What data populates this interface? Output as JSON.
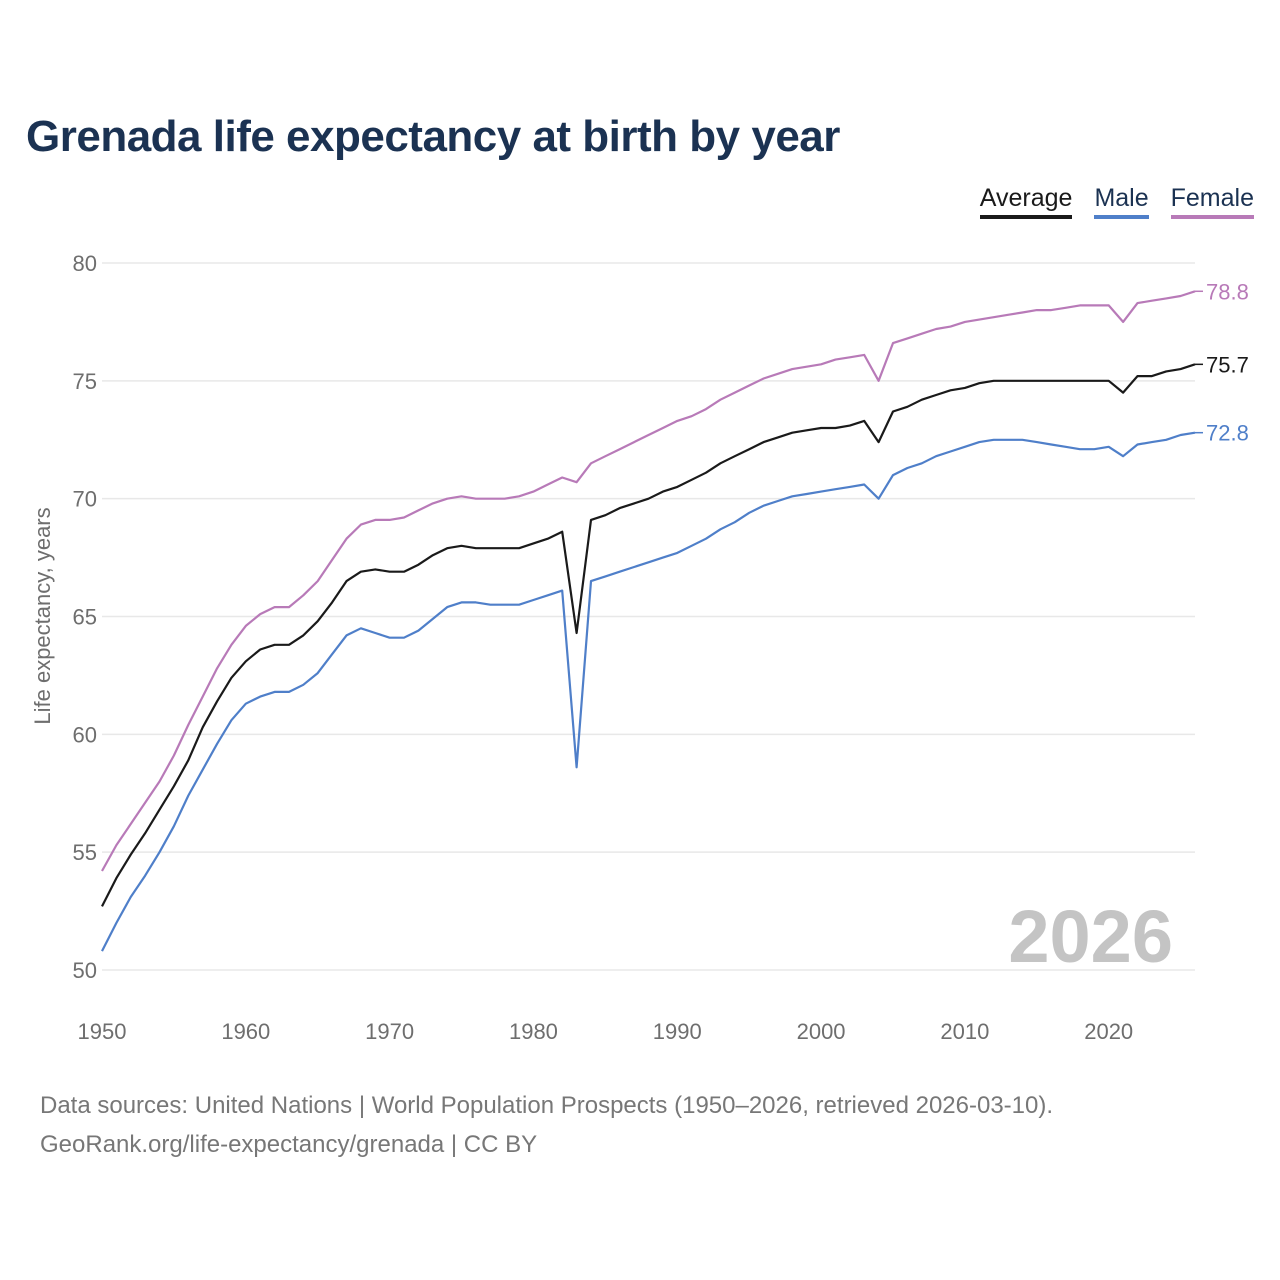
{
  "chart_data": {
    "type": "line",
    "title": "Grenada life expectancy at birth by year",
    "xlabel": "",
    "ylabel": "Life expectancy, years",
    "xlim": [
      1950,
      2026
    ],
    "ylim": [
      50,
      80
    ],
    "xticks": [
      "1950",
      "1960",
      "1970",
      "1980",
      "1990",
      "2000",
      "2010",
      "2020"
    ],
    "yticks": [
      "50",
      "55",
      "60",
      "65",
      "70",
      "75",
      "80"
    ],
    "grid": true,
    "legend_placement": "top-right",
    "watermark_year": "2026",
    "x_start": 1950,
    "series": [
      {
        "name": "Average",
        "color": "#1a1a1a",
        "end_label": "75.7",
        "values": [
          52.7,
          53.9,
          54.9,
          55.8,
          56.8,
          57.8,
          58.9,
          60.3,
          61.4,
          62.4,
          63.1,
          63.6,
          63.8,
          63.8,
          64.2,
          64.8,
          65.6,
          66.5,
          66.9,
          67.0,
          66.9,
          66.9,
          67.2,
          67.6,
          67.9,
          68.0,
          67.9,
          67.9,
          67.9,
          67.9,
          68.1,
          68.3,
          68.6,
          64.3,
          69.1,
          69.3,
          69.6,
          69.8,
          70.0,
          70.3,
          70.5,
          70.8,
          71.1,
          71.5,
          71.8,
          72.1,
          72.4,
          72.6,
          72.8,
          72.9,
          73.0,
          73.0,
          73.1,
          73.3,
          72.4,
          73.7,
          73.9,
          74.2,
          74.4,
          74.6,
          74.7,
          74.9,
          75.0,
          75.0,
          75.0,
          75.0,
          75.0,
          75.0,
          75.0,
          75.0,
          75.0,
          74.5,
          75.2,
          75.2,
          75.4,
          75.5,
          75.7
        ]
      },
      {
        "name": "Male",
        "color": "#4f7fc9",
        "end_label": "72.8",
        "values": [
          50.8,
          52.0,
          53.1,
          54.0,
          55.0,
          56.1,
          57.4,
          58.5,
          59.6,
          60.6,
          61.3,
          61.6,
          61.8,
          61.8,
          62.1,
          62.6,
          63.4,
          64.2,
          64.5,
          64.3,
          64.1,
          64.1,
          64.4,
          64.9,
          65.4,
          65.6,
          65.6,
          65.5,
          65.5,
          65.5,
          65.7,
          65.9,
          66.1,
          58.6,
          66.5,
          66.7,
          66.9,
          67.1,
          67.3,
          67.5,
          67.7,
          68.0,
          68.3,
          68.7,
          69.0,
          69.4,
          69.7,
          69.9,
          70.1,
          70.2,
          70.3,
          70.4,
          70.5,
          70.6,
          70.0,
          71.0,
          71.3,
          71.5,
          71.8,
          72.0,
          72.2,
          72.4,
          72.5,
          72.5,
          72.5,
          72.4,
          72.3,
          72.2,
          72.1,
          72.1,
          72.2,
          71.8,
          72.3,
          72.4,
          72.5,
          72.7,
          72.8
        ]
      },
      {
        "name": "Female",
        "color": "#b87ab8",
        "end_label": "78.8",
        "values": [
          54.2,
          55.3,
          56.2,
          57.1,
          58.0,
          59.1,
          60.4,
          61.6,
          62.8,
          63.8,
          64.6,
          65.1,
          65.4,
          65.4,
          65.9,
          66.5,
          67.4,
          68.3,
          68.9,
          69.1,
          69.1,
          69.2,
          69.5,
          69.8,
          70.0,
          70.1,
          70.0,
          70.0,
          70.0,
          70.1,
          70.3,
          70.6,
          70.9,
          70.7,
          71.5,
          71.8,
          72.1,
          72.4,
          72.7,
          73.0,
          73.3,
          73.5,
          73.8,
          74.2,
          74.5,
          74.8,
          75.1,
          75.3,
          75.5,
          75.6,
          75.7,
          75.9,
          76.0,
          76.1,
          75.0,
          76.6,
          76.8,
          77.0,
          77.2,
          77.3,
          77.5,
          77.6,
          77.7,
          77.8,
          77.9,
          78.0,
          78.0,
          78.1,
          78.2,
          78.2,
          78.2,
          77.5,
          78.3,
          78.4,
          78.5,
          78.6,
          78.8
        ]
      }
    ]
  },
  "footer": {
    "line1": "Data sources: United Nations | World Population Prospects (1950–2026, retrieved 2026-03-10).",
    "line2": "GeoRank.org/life-expectancy/grenada | CC BY"
  }
}
